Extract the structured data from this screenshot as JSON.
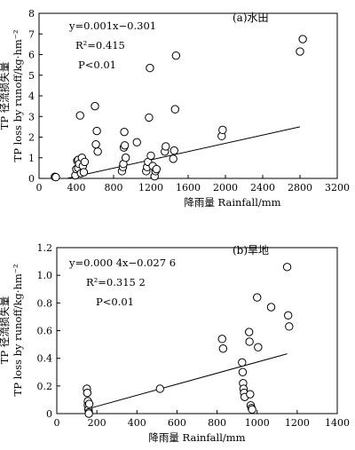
{
  "chart_data": [
    {
      "type": "scatter",
      "panel_label": "(a)水田",
      "equation": "y=0.001x−0.301",
      "r2": "R²=0.415",
      "p": "P<0.01",
      "xlabel": "降雨量 Rainfall/mm",
      "ylabel_cn": "TP 径流损失量",
      "ylabel_en": "TP loss by runoff/kg·hm⁻²",
      "xlim": [
        0,
        3200
      ],
      "ylim": [
        0,
        8
      ],
      "xticks": [
        0,
        400,
        800,
        1200,
        1600,
        2000,
        2400,
        2800,
        3200
      ],
      "yticks": [
        0,
        1,
        2,
        3,
        4,
        5,
        6,
        7,
        8
      ],
      "fit": {
        "slope": 0.001,
        "intercept": -0.301,
        "x_range": [
          300,
          2800
        ]
      },
      "points": [
        [
          170,
          0.08
        ],
        [
          180,
          0.06
        ],
        [
          390,
          0.15
        ],
        [
          400,
          0.45
        ],
        [
          410,
          0.85
        ],
        [
          420,
          0.5
        ],
        [
          420,
          0.9
        ],
        [
          430,
          0.7
        ],
        [
          440,
          3.05
        ],
        [
          450,
          0.25
        ],
        [
          460,
          1.0
        ],
        [
          470,
          0.6
        ],
        [
          480,
          0.3
        ],
        [
          490,
          0.8
        ],
        [
          600,
          3.5
        ],
        [
          610,
          1.65
        ],
        [
          620,
          2.3
        ],
        [
          630,
          1.3
        ],
        [
          890,
          0.35
        ],
        [
          900,
          0.55
        ],
        [
          905,
          0.7
        ],
        [
          910,
          1.5
        ],
        [
          915,
          2.25
        ],
        [
          920,
          1.6
        ],
        [
          930,
          1.0
        ],
        [
          1050,
          1.75
        ],
        [
          1150,
          0.35
        ],
        [
          1160,
          0.55
        ],
        [
          1170,
          0.8
        ],
        [
          1180,
          2.95
        ],
        [
          1190,
          5.35
        ],
        [
          1200,
          1.1
        ],
        [
          1220,
          0.6
        ],
        [
          1240,
          0.1
        ],
        [
          1250,
          0.35
        ],
        [
          1260,
          0.45
        ],
        [
          1350,
          1.3
        ],
        [
          1360,
          1.55
        ],
        [
          1440,
          0.95
        ],
        [
          1450,
          1.35
        ],
        [
          1460,
          3.35
        ],
        [
          1470,
          5.95
        ],
        [
          1960,
          2.05
        ],
        [
          1970,
          2.35
        ],
        [
          2800,
          6.15
        ],
        [
          2830,
          6.75
        ]
      ]
    },
    {
      "type": "scatter",
      "panel_label": "(b)旱地",
      "equation": "y=0.000 4x−0.027 6",
      "r2": "R²=0.315 2",
      "p": "P<0.01",
      "xlabel": "降雨量 Rainfall/mm",
      "ylabel_cn": "TP 径流损失量",
      "ylabel_en": "TP loss by runoff/kg·hm⁻²",
      "xlim": [
        0,
        1400
      ],
      "ylim": [
        0,
        1.2
      ],
      "xticks": [
        0,
        200,
        400,
        600,
        800,
        1000,
        1200,
        1400
      ],
      "yticks": [
        0,
        0.2,
        0.4,
        0.6,
        0.8,
        1.0,
        1.2
      ],
      "ytick_labels": [
        "0",
        "0.2",
        "0.4",
        "0.6",
        "0.8",
        "1.0",
        "1.2"
      ],
      "fit": {
        "slope": 0.0004,
        "intercept": -0.0276,
        "x_range": [
          150,
          1150
        ]
      },
      "points": [
        [
          150,
          0.18
        ],
        [
          152,
          0.15
        ],
        [
          155,
          0.09
        ],
        [
          155,
          0.06
        ],
        [
          158,
          0.03
        ],
        [
          160,
          0.01
        ],
        [
          162,
          0.07
        ],
        [
          160,
          0.0
        ],
        [
          515,
          0.18
        ],
        [
          825,
          0.54
        ],
        [
          830,
          0.47
        ],
        [
          925,
          0.37
        ],
        [
          928,
          0.3
        ],
        [
          930,
          0.22
        ],
        [
          932,
          0.18
        ],
        [
          935,
          0.15
        ],
        [
          938,
          0.12
        ],
        [
          960,
          0.59
        ],
        [
          962,
          0.52
        ],
        [
          965,
          0.14
        ],
        [
          968,
          0.06
        ],
        [
          972,
          0.04
        ],
        [
          975,
          0.03
        ],
        [
          1000,
          0.84
        ],
        [
          1005,
          0.48
        ],
        [
          1070,
          0.77
        ],
        [
          1150,
          1.06
        ],
        [
          1155,
          0.71
        ],
        [
          1160,
          0.63
        ]
      ]
    }
  ]
}
